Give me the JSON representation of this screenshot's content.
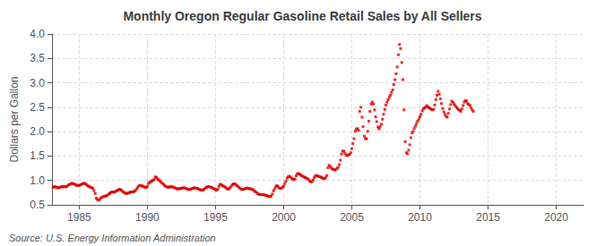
{
  "chart_data": {
    "type": "scatter",
    "title": "Monthly Oregon Regular Gasoline Retail Sales by All Sellers",
    "ylabel": "Dollars per Gallon",
    "annotations": [
      "Source: U.S. Energy Information Administration"
    ],
    "color": "#dd0000",
    "marker": "square",
    "grid": true,
    "xlim": [
      1983.0,
      2022.0
    ],
    "xticks": [
      1985,
      1990,
      1995,
      2000,
      2005,
      2010,
      2015,
      2020
    ],
    "ylim": [
      0.5,
      4.0
    ],
    "yticks": [
      0.5,
      {
        "value": 1.0,
        "label": "1.0"
      },
      1.5,
      {
        "value": 2.0,
        "label": "2.0"
      },
      2.5,
      {
        "value": 3.0,
        "label": "3.0"
      },
      3.5,
      {
        "value": 4.0,
        "label": "4.0"
      }
    ],
    "x": [
      1983.08,
      1983.17,
      1983.25,
      1983.33,
      1983.42,
      1983.5,
      1983.58,
      1983.67,
      1983.75,
      1983.83,
      1983.92,
      1984.0,
      1984.08,
      1984.17,
      1984.25,
      1984.33,
      1984.42,
      1984.5,
      1984.58,
      1984.67,
      1984.75,
      1984.83,
      1984.92,
      1985.0,
      1985.08,
      1985.17,
      1985.25,
      1985.33,
      1985.42,
      1985.5,
      1985.58,
      1985.67,
      1985.75,
      1985.83,
      1985.92,
      1986.0,
      1986.08,
      1986.17,
      1986.25,
      1986.33,
      1986.42,
      1986.5,
      1986.58,
      1986.67,
      1986.75,
      1986.83,
      1986.92,
      1987.0,
      1987.08,
      1987.17,
      1987.25,
      1987.33,
      1987.42,
      1987.5,
      1987.58,
      1987.67,
      1987.75,
      1987.83,
      1987.92,
      1988.0,
      1988.08,
      1988.17,
      1988.25,
      1988.33,
      1988.42,
      1988.5,
      1988.58,
      1988.67,
      1988.75,
      1988.83,
      1988.92,
      1989.0,
      1989.08,
      1989.17,
      1989.25,
      1989.33,
      1989.42,
      1989.5,
      1989.58,
      1989.67,
      1989.75,
      1989.83,
      1989.92,
      1990.0,
      1990.08,
      1990.17,
      1990.25,
      1990.33,
      1990.42,
      1990.5,
      1990.58,
      1990.67,
      1990.75,
      1990.83,
      1990.92,
      1991.0,
      1991.08,
      1991.17,
      1991.25,
      1991.33,
      1991.42,
      1991.5,
      1991.58,
      1991.67,
      1991.75,
      1991.83,
      1991.92,
      1992.0,
      1992.08,
      1992.17,
      1992.25,
      1992.33,
      1992.42,
      1992.5,
      1992.58,
      1992.67,
      1992.75,
      1992.83,
      1992.92,
      1993.0,
      1993.08,
      1993.17,
      1993.25,
      1993.33,
      1993.42,
      1993.5,
      1993.58,
      1993.67,
      1993.75,
      1993.83,
      1993.92,
      1994.0,
      1994.08,
      1994.17,
      1994.25,
      1994.33,
      1994.42,
      1994.5,
      1994.58,
      1994.67,
      1994.75,
      1994.83,
      1994.92,
      1995.0,
      1995.08,
      1995.17,
      1995.25,
      1995.33,
      1995.42,
      1995.5,
      1995.58,
      1995.67,
      1995.75,
      1995.83,
      1995.92,
      1996.0,
      1996.08,
      1996.17,
      1996.25,
      1996.33,
      1996.42,
      1996.5,
      1996.58,
      1996.67,
      1996.75,
      1996.83,
      1996.92,
      1997.0,
      1997.08,
      1997.17,
      1997.25,
      1997.33,
      1997.42,
      1997.5,
      1997.58,
      1997.67,
      1997.75,
      1997.83,
      1997.92,
      1998.0,
      1998.08,
      1998.17,
      1998.25,
      1998.33,
      1998.42,
      1998.5,
      1998.58,
      1998.67,
      1998.75,
      1998.83,
      1998.92,
      1999.0,
      1999.08,
      1999.17,
      1999.25,
      1999.33,
      1999.42,
      1999.5,
      1999.58,
      1999.67,
      1999.75,
      1999.83,
      1999.92,
      2000.0,
      2000.08,
      2000.17,
      2000.25,
      2000.33,
      2000.42,
      2000.5,
      2000.58,
      2000.67,
      2000.75,
      2000.83,
      2000.92,
      2001.0,
      2001.08,
      2001.17,
      2001.25,
      2001.33,
      2001.42,
      2001.5,
      2001.58,
      2001.67,
      2001.75,
      2001.83,
      2001.92,
      2002.0,
      2002.08,
      2002.17,
      2002.25,
      2002.33,
      2002.42,
      2002.5,
      2002.58,
      2002.67,
      2002.75,
      2002.83,
      2002.92,
      2003.0,
      2003.08,
      2003.17,
      2003.25,
      2003.33,
      2003.42,
      2003.5,
      2003.58,
      2003.67,
      2003.75,
      2003.83,
      2003.92,
      2004.0,
      2004.08,
      2004.17,
      2004.25,
      2004.33,
      2004.42,
      2004.5,
      2004.58,
      2004.67,
      2004.75,
      2004.83,
      2004.92,
      2005.0,
      2005.08,
      2005.17,
      2005.25,
      2005.33,
      2005.42,
      2005.5,
      2005.58,
      2005.67,
      2005.75,
      2005.83,
      2005.92,
      2006.0,
      2006.08,
      2006.17,
      2006.25,
      2006.33,
      2006.42,
      2006.5,
      2006.58,
      2006.67,
      2006.75,
      2006.83,
      2006.92,
      2007.0,
      2007.08,
      2007.17,
      2007.25,
      2007.33,
      2007.42,
      2007.5,
      2007.58,
      2007.67,
      2007.75,
      2007.83,
      2007.92,
      2008.0,
      2008.08,
      2008.17,
      2008.25,
      2008.33,
      2008.42,
      2008.5,
      2008.58,
      2008.67,
      2008.75,
      2008.83,
      2008.92,
      2009.0,
      2009.08,
      2009.17,
      2009.25,
      2009.33,
      2009.42,
      2009.5,
      2009.58,
      2009.67,
      2009.75,
      2009.83,
      2009.92,
      2010.0,
      2010.08,
      2010.17,
      2010.25,
      2010.33,
      2010.42,
      2010.5,
      2010.58,
      2010.67,
      2010.75,
      2010.83,
      2010.92,
      2011.0,
      2011.08,
      2011.17,
      2011.25,
      2011.33,
      2011.42,
      2011.5,
      2011.58,
      2011.67,
      2011.75,
      2011.83,
      2011.92,
      2012.0,
      2012.08,
      2012.17,
      2012.25,
      2012.33,
      2012.42,
      2012.5,
      2012.58,
      2012.67,
      2012.75,
      2012.83,
      2012.92,
      2013.0,
      2013.08,
      2013.17,
      2013.25,
      2013.33,
      2013.42,
      2013.5,
      2013.58,
      2013.67,
      2013.75,
      2013.83,
      2013.92
    ],
    "values": [
      0.86,
      0.87,
      0.87,
      0.86,
      0.85,
      0.85,
      0.86,
      0.87,
      0.87,
      0.88,
      0.87,
      0.87,
      0.875,
      0.9,
      0.915,
      0.92,
      0.935,
      0.94,
      0.93,
      0.92,
      0.905,
      0.9,
      0.895,
      0.9,
      0.91,
      0.92,
      0.93,
      0.94,
      0.94,
      0.92,
      0.9,
      0.885,
      0.875,
      0.86,
      0.85,
      0.84,
      0.79,
      0.73,
      0.64,
      0.61,
      0.59,
      0.61,
      0.64,
      0.655,
      0.665,
      0.675,
      0.68,
      0.685,
      0.7,
      0.72,
      0.74,
      0.755,
      0.765,
      0.76,
      0.76,
      0.775,
      0.79,
      0.8,
      0.815,
      0.82,
      0.8,
      0.78,
      0.76,
      0.745,
      0.735,
      0.735,
      0.74,
      0.75,
      0.76,
      0.765,
      0.765,
      0.77,
      0.785,
      0.81,
      0.84,
      0.875,
      0.895,
      0.9,
      0.89,
      0.88,
      0.87,
      0.855,
      0.855,
      0.88,
      0.94,
      0.96,
      0.975,
      0.99,
      1.0,
      1.025,
      1.075,
      1.06,
      1.03,
      1.01,
      0.99,
      0.965,
      0.945,
      0.925,
      0.9,
      0.88,
      0.87,
      0.86,
      0.86,
      0.87,
      0.87,
      0.87,
      0.86,
      0.85,
      0.84,
      0.83,
      0.83,
      0.83,
      0.83,
      0.84,
      0.845,
      0.85,
      0.845,
      0.835,
      0.825,
      0.815,
      0.815,
      0.82,
      0.83,
      0.84,
      0.85,
      0.845,
      0.84,
      0.835,
      0.825,
      0.815,
      0.805,
      0.805,
      0.8,
      0.82,
      0.845,
      0.86,
      0.87,
      0.875,
      0.87,
      0.86,
      0.85,
      0.84,
      0.825,
      0.81,
      0.8,
      0.82,
      0.88,
      0.92,
      0.915,
      0.895,
      0.88,
      0.87,
      0.855,
      0.835,
      0.82,
      0.83,
      0.855,
      0.885,
      0.915,
      0.93,
      0.93,
      0.91,
      0.89,
      0.87,
      0.85,
      0.83,
      0.82,
      0.815,
      0.82,
      0.83,
      0.84,
      0.845,
      0.84,
      0.83,
      0.83,
      0.82,
      0.81,
      0.79,
      0.77,
      0.755,
      0.73,
      0.72,
      0.71,
      0.71,
      0.71,
      0.71,
      0.7,
      0.7,
      0.69,
      0.68,
      0.67,
      0.67,
      0.68,
      0.72,
      0.785,
      0.825,
      0.87,
      0.895,
      0.875,
      0.845,
      0.835,
      0.84,
      0.86,
      0.885,
      0.94,
      0.985,
      1.045,
      1.075,
      1.085,
      1.07,
      1.045,
      1.025,
      1.015,
      1.03,
      1.095,
      1.135,
      1.14,
      1.13,
      1.11,
      1.095,
      1.085,
      1.07,
      1.06,
      1.045,
      1.035,
      1.015,
      0.985,
      0.97,
      0.98,
      1.01,
      1.06,
      1.095,
      1.1,
      1.09,
      1.08,
      1.075,
      1.065,
      1.05,
      1.04,
      1.035,
      1.055,
      1.1,
      1.26,
      1.31,
      1.285,
      1.25,
      1.235,
      1.225,
      1.215,
      1.22,
      1.25,
      1.265,
      1.325,
      1.415,
      1.54,
      1.6,
      1.6,
      1.555,
      1.52,
      1.51,
      1.52,
      1.535,
      1.57,
      1.65,
      1.755,
      1.855,
      2.01,
      2.055,
      2.06,
      2.025,
      2.415,
      2.5,
      2.295,
      2.1,
      1.905,
      1.855,
      1.855,
      2.005,
      2.215,
      2.415,
      2.565,
      2.605,
      2.565,
      2.445,
      2.305,
      2.205,
      2.095,
      2.055,
      2.1,
      2.15,
      2.255,
      2.355,
      2.455,
      2.545,
      2.605,
      2.655,
      2.705,
      2.75,
      2.805,
      2.855,
      2.965,
      3.065,
      3.185,
      3.325,
      3.575,
      3.785,
      3.7,
      3.415,
      3.065,
      2.445,
      1.795,
      1.57,
      1.545,
      1.62,
      1.73,
      1.875,
      1.975,
      2.005,
      2.065,
      2.115,
      2.165,
      2.215,
      2.255,
      2.305,
      2.355,
      2.425,
      2.465,
      2.485,
      2.505,
      2.535,
      2.505,
      2.485,
      2.475,
      2.455,
      2.445,
      2.455,
      2.545,
      2.655,
      2.745,
      2.825,
      2.765,
      2.675,
      2.575,
      2.475,
      2.405,
      2.355,
      2.315,
      2.295,
      2.375,
      2.465,
      2.555,
      2.625,
      2.605,
      2.565,
      2.535,
      2.505,
      2.475,
      2.455,
      2.435,
      2.415,
      2.465,
      2.535,
      2.605,
      2.635,
      2.625,
      2.575,
      2.555,
      2.535,
      2.485,
      2.445,
      2.415
    ]
  }
}
